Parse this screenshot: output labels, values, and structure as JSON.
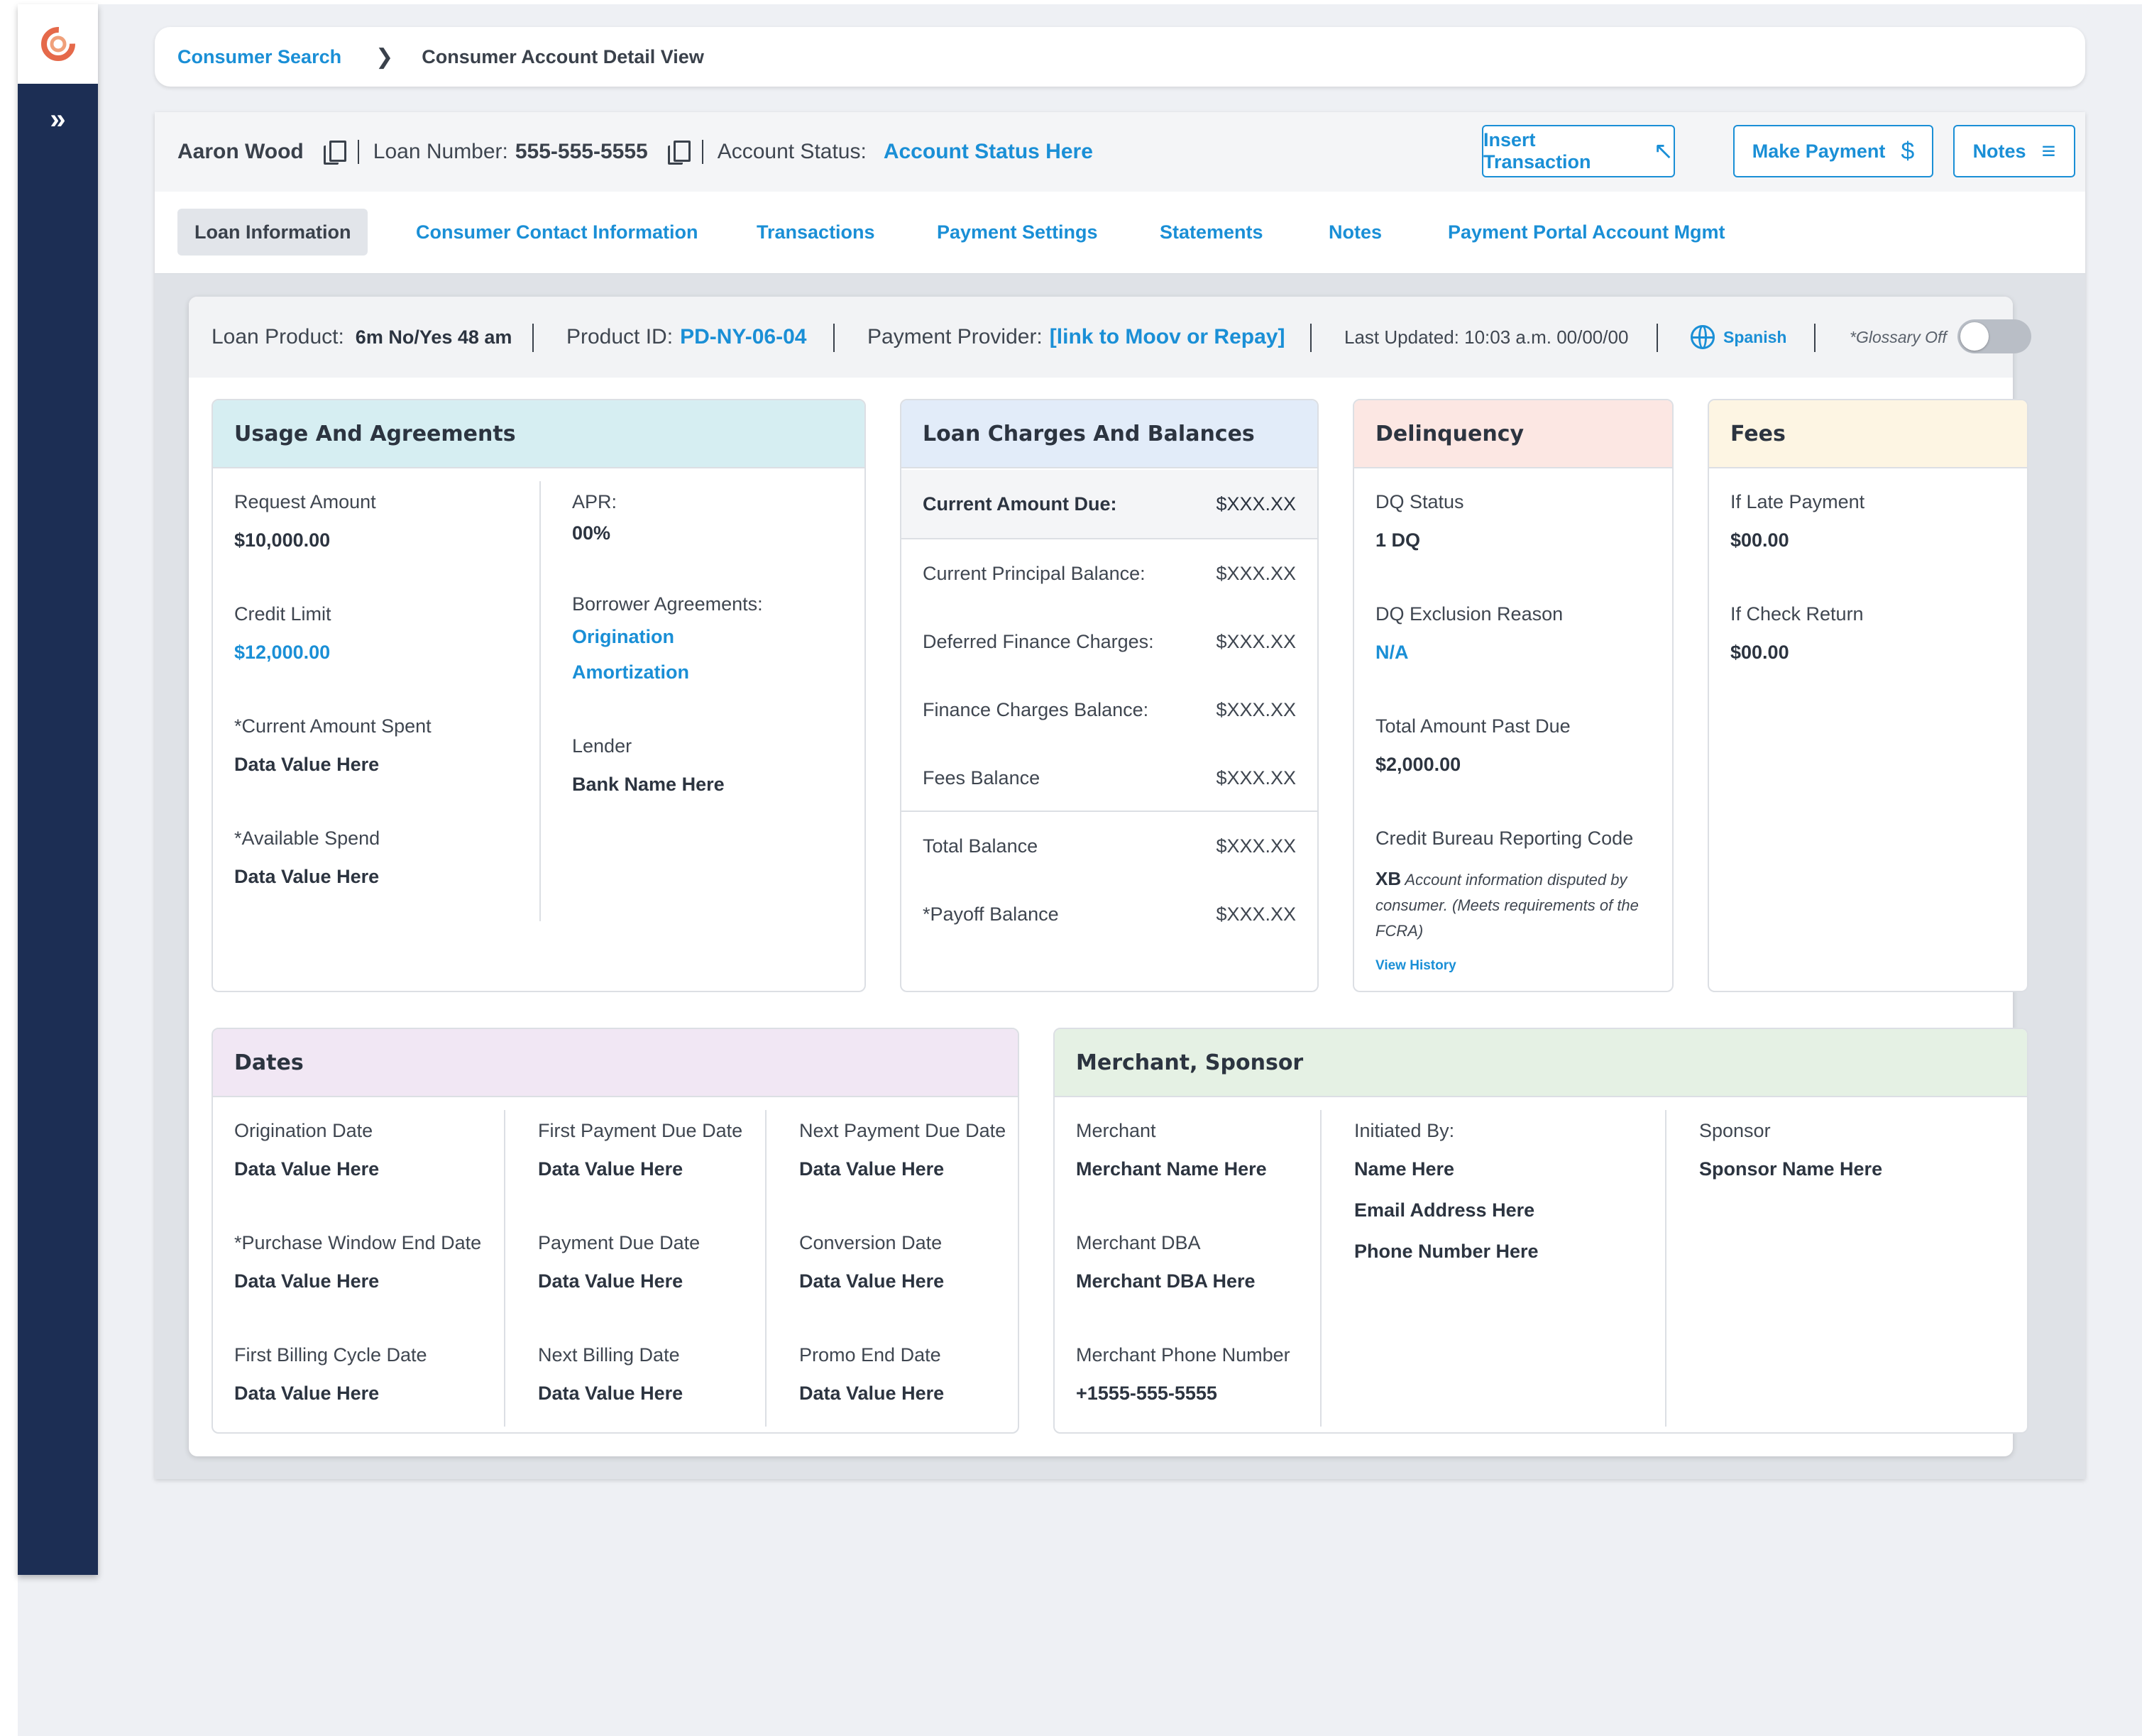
{
  "breadcrumb": {
    "parent": "Consumer Search",
    "current": "Consumer Account Detail View"
  },
  "account": {
    "name": "Aaron Wood",
    "loan_number_label": "Loan Number:",
    "loan_number": "555-555-5555",
    "status_label": "Account Status:",
    "status_value": "Account Status Here"
  },
  "actions": {
    "insert_transaction": "Insert Transaction",
    "make_payment": "Make Payment",
    "notes": "Notes"
  },
  "tabs": [
    {
      "label": "Loan Information",
      "active": true
    },
    {
      "label": "Consumer Contact Information"
    },
    {
      "label": "Transactions"
    },
    {
      "label": "Payment Settings"
    },
    {
      "label": "Statements"
    },
    {
      "label": "Notes"
    },
    {
      "label": "Payment Portal Account Mgmt"
    }
  ],
  "strip": {
    "loan_product_label": "Loan Product:",
    "loan_product_value": "6m No/Yes 48 am",
    "product_id_label": "Product ID:",
    "product_id_value": "PD-NY-06-04",
    "payment_provider_label": "Payment Provider:",
    "payment_provider_value": "[link to Moov or Repay]",
    "last_updated": "Last Updated: 10:03 a.m. 00/00/00",
    "language": "Spanish",
    "glossary": "*Glossary Off"
  },
  "usage": {
    "title": "Usage And Agreements",
    "request_amount_label": "Request Amount",
    "request_amount": "$10,000.00",
    "credit_limit_label": "Credit Limit",
    "credit_limit": "$12,000.00",
    "current_spent_label": "*Current Amount Spent",
    "current_spent": "Data Value Here",
    "available_spend_label": "*Available Spend",
    "available_spend": "Data Value Here",
    "apr_label": "APR:",
    "apr": "00%",
    "agreements_label": "Borrower Agreements:",
    "agreement_1": "Origination",
    "agreement_2": "Amortization",
    "lender_label": "Lender",
    "lender": "Bank Name Here"
  },
  "charges": {
    "title": "Loan Charges And Balances",
    "rows": [
      {
        "label": "Current Amount Due:",
        "value": "$XXX.XX"
      },
      {
        "label": "Current Principal Balance:",
        "value": "$XXX.XX"
      },
      {
        "label": "Deferred Finance Charges:",
        "value": "$XXX.XX"
      },
      {
        "label": "Finance Charges Balance:",
        "value": "$XXX.XX"
      },
      {
        "label": "Fees Balance",
        "value": "$XXX.XX"
      },
      {
        "label": "Total Balance",
        "value": "$XXX.XX"
      },
      {
        "label": "*Payoff Balance",
        "value": "$XXX.XX"
      }
    ]
  },
  "delinquency": {
    "title": "Delinquency",
    "dq_status_label": "DQ Status",
    "dq_status": "1 DQ",
    "dq_exclusion_label": "DQ Exclusion Reason",
    "dq_exclusion": "N/A",
    "past_due_label": "Total Amount Past Due",
    "past_due": "$2,000.00",
    "bureau_label": "Credit Bureau Reporting Code",
    "bureau_code": "XB",
    "bureau_line1": "Account information disputed by",
    "bureau_line2": "consumer. (Meets requirements of the",
    "bureau_line3": "FCRA)",
    "view_history": "View History"
  },
  "fees": {
    "title": "Fees",
    "late_label": "If Late Payment",
    "late_value": "$00.00",
    "check_label": "If Check Return",
    "check_value": "$00.00"
  },
  "dates": {
    "title": "Dates",
    "origination_label": "Origination Date",
    "origination": "Data Value Here",
    "first_payment_label": "First Payment Due Date",
    "first_payment": "Data Value Here",
    "next_payment_label": "Next Payment Due Date",
    "next_payment": "Data Value Here",
    "purchase_window_label": "*Purchase Window End Date",
    "purchase_window": "Data Value Here",
    "payment_due_label": "Payment Due Date",
    "payment_due": "Data Value Here",
    "conversion_label": "Conversion Date",
    "conversion": "Data Value Here",
    "first_billing_label": "First Billing Cycle Date",
    "first_billing": "Data Value Here",
    "next_billing_label": "Next Billing Date",
    "next_billing": "Data Value Here",
    "promo_end_label": "Promo End Date",
    "promo_end": "Data Value Here"
  },
  "merchant": {
    "title": "Merchant, Sponsor",
    "merchant_label": "Merchant",
    "merchant": "Merchant Name Here",
    "dba_label": "Merchant DBA",
    "dba": "Merchant DBA Here",
    "phone_label": "Merchant Phone Number",
    "phone": "+1555-555-5555",
    "initiated_label": "Initiated By:",
    "initiated_name": "Name Here",
    "initiated_email": "Email Address Here",
    "initiated_phone": "Phone Number Here",
    "sponsor_label": "Sponsor",
    "sponsor": "Sponsor Name Here"
  },
  "colors": {
    "accent": "#1a8fd6",
    "sidebar": "#1c2e54",
    "usage_head": "#d6eef2",
    "charges_head": "#e2ecf9",
    "delinquency_head": "#fce7e3",
    "fees_head": "#fdf5e3",
    "dates_head": "#f1e7f4",
    "merchant_head": "#e5f1e4"
  },
  "icons": {
    "logo": "brand-logo-icon",
    "expand": "double-chevron-right-icon",
    "copy": "copy-icon",
    "insert": "arrow-up-left-icon",
    "payment": "dollar-icon",
    "notes": "menu-lines-icon",
    "language": "globe-icon"
  }
}
